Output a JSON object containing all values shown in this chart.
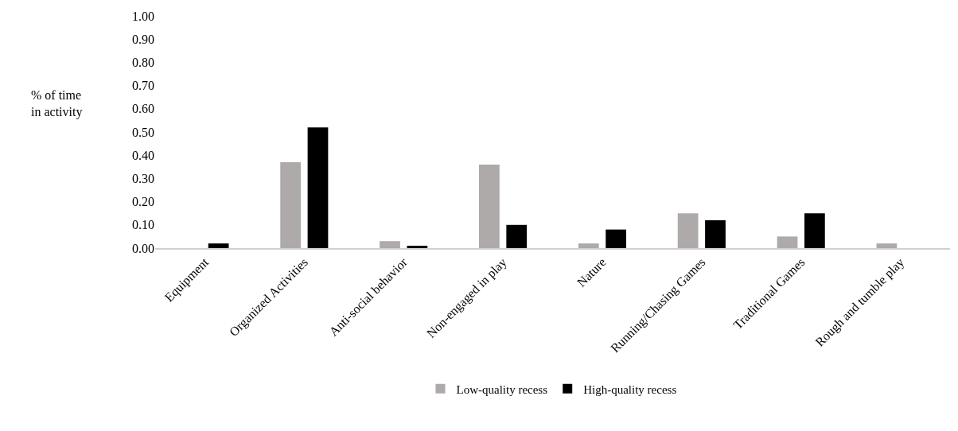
{
  "chart_data": {
    "type": "bar",
    "ylabel": "% of time in activity",
    "categories": [
      "Equipment",
      "Organized Activities",
      "Anti-social behavior",
      "Non-engaged in play",
      "Nature",
      "Running/Chasing Games",
      "Traditional Games",
      "Rough and tumble play"
    ],
    "series": [
      {
        "name": "Low-quality recess",
        "color": "#aeaaaa",
        "values": [
          0,
          0.37,
          0.03,
          0.36,
          0.02,
          0.15,
          0.05,
          0.02
        ]
      },
      {
        "name": "High-quality recess",
        "color": "#000000",
        "values": [
          0.02,
          0.52,
          0.01,
          0.1,
          0.08,
          0.12,
          0.15,
          0
        ]
      }
    ],
    "ylim": [
      0,
      1
    ],
    "yticks": [
      {
        "value": 0,
        "label": "0.00"
      },
      {
        "value": 0.1,
        "label": "0.10"
      },
      {
        "value": 0.2,
        "label": "0.20"
      },
      {
        "value": 0.3,
        "label": "0.30"
      },
      {
        "value": 0.4,
        "label": "0.40"
      },
      {
        "value": 0.5,
        "label": "0.50"
      },
      {
        "value": 0.6,
        "label": "0.60"
      },
      {
        "value": 0.7,
        "label": "0.70"
      },
      {
        "value": 0.8,
        "label": "0.80"
      },
      {
        "value": 0.9,
        "label": "0.90"
      },
      {
        "value": 1,
        "label": "1.00"
      }
    ],
    "grid": false,
    "legend": "bottom"
  }
}
